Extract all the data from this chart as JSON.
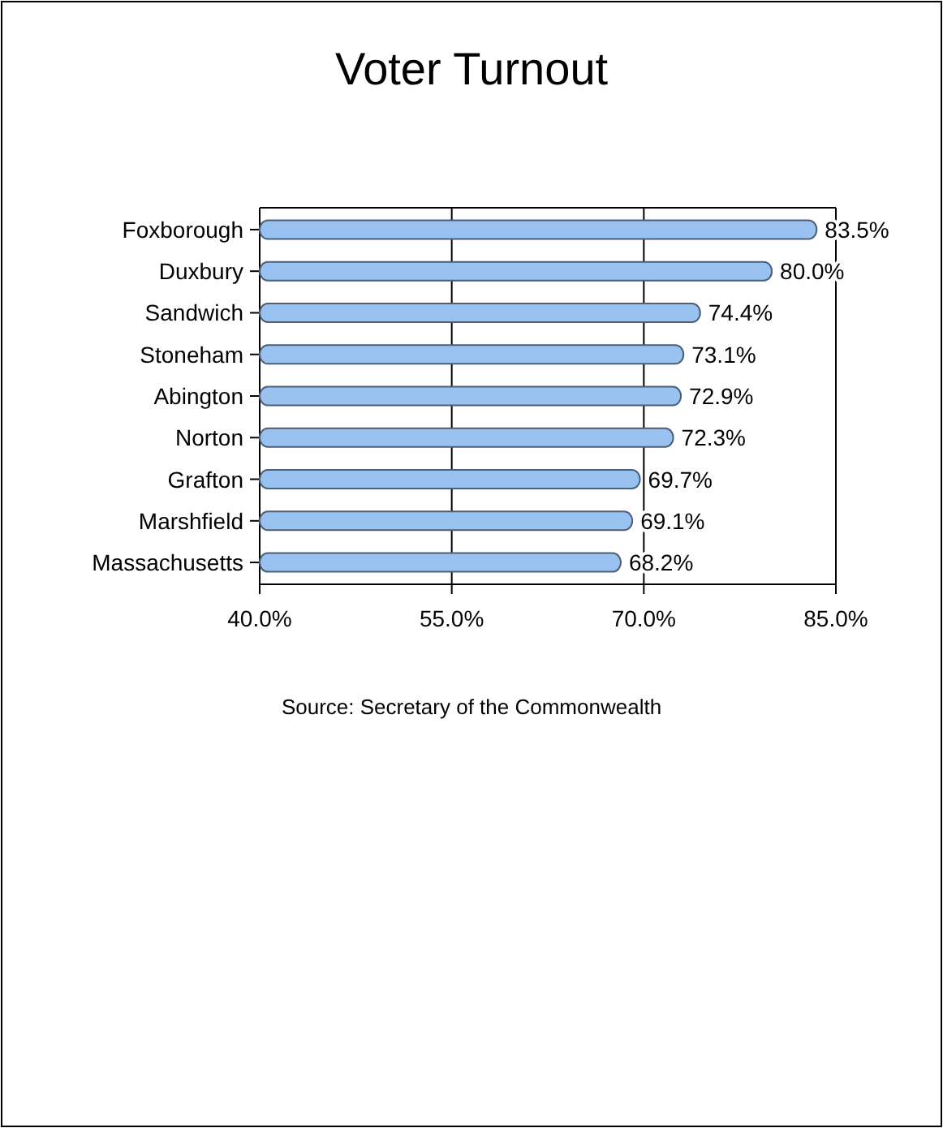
{
  "chart_data": {
    "type": "bar",
    "orientation": "horizontal",
    "title": "Voter Turnout",
    "categories": [
      "Foxborough",
      "Duxbury",
      "Sandwich",
      "Stoneham",
      "Abington",
      "Norton",
      "Grafton",
      "Marshfield",
      "Massachusetts"
    ],
    "values": [
      83.5,
      80.0,
      74.4,
      73.1,
      72.9,
      72.3,
      69.7,
      69.1,
      68.2
    ],
    "value_labels": [
      "83.5%",
      "80.0%",
      "74.4%",
      "73.1%",
      "72.9%",
      "72.3%",
      "69.7%",
      "69.1%",
      "68.2%"
    ],
    "color": "#99c2f0",
    "xlim": [
      40,
      85
    ],
    "xticks": [
      {
        "value": 40,
        "label": "40.0%"
      },
      {
        "value": 55,
        "label": "55.0%"
      },
      {
        "value": 70,
        "label": "70.0%"
      },
      {
        "value": 85,
        "label": "85.0%"
      }
    ],
    "grid": "x",
    "annotations": [
      "Source: Secretary of the Commonwealth"
    ]
  }
}
